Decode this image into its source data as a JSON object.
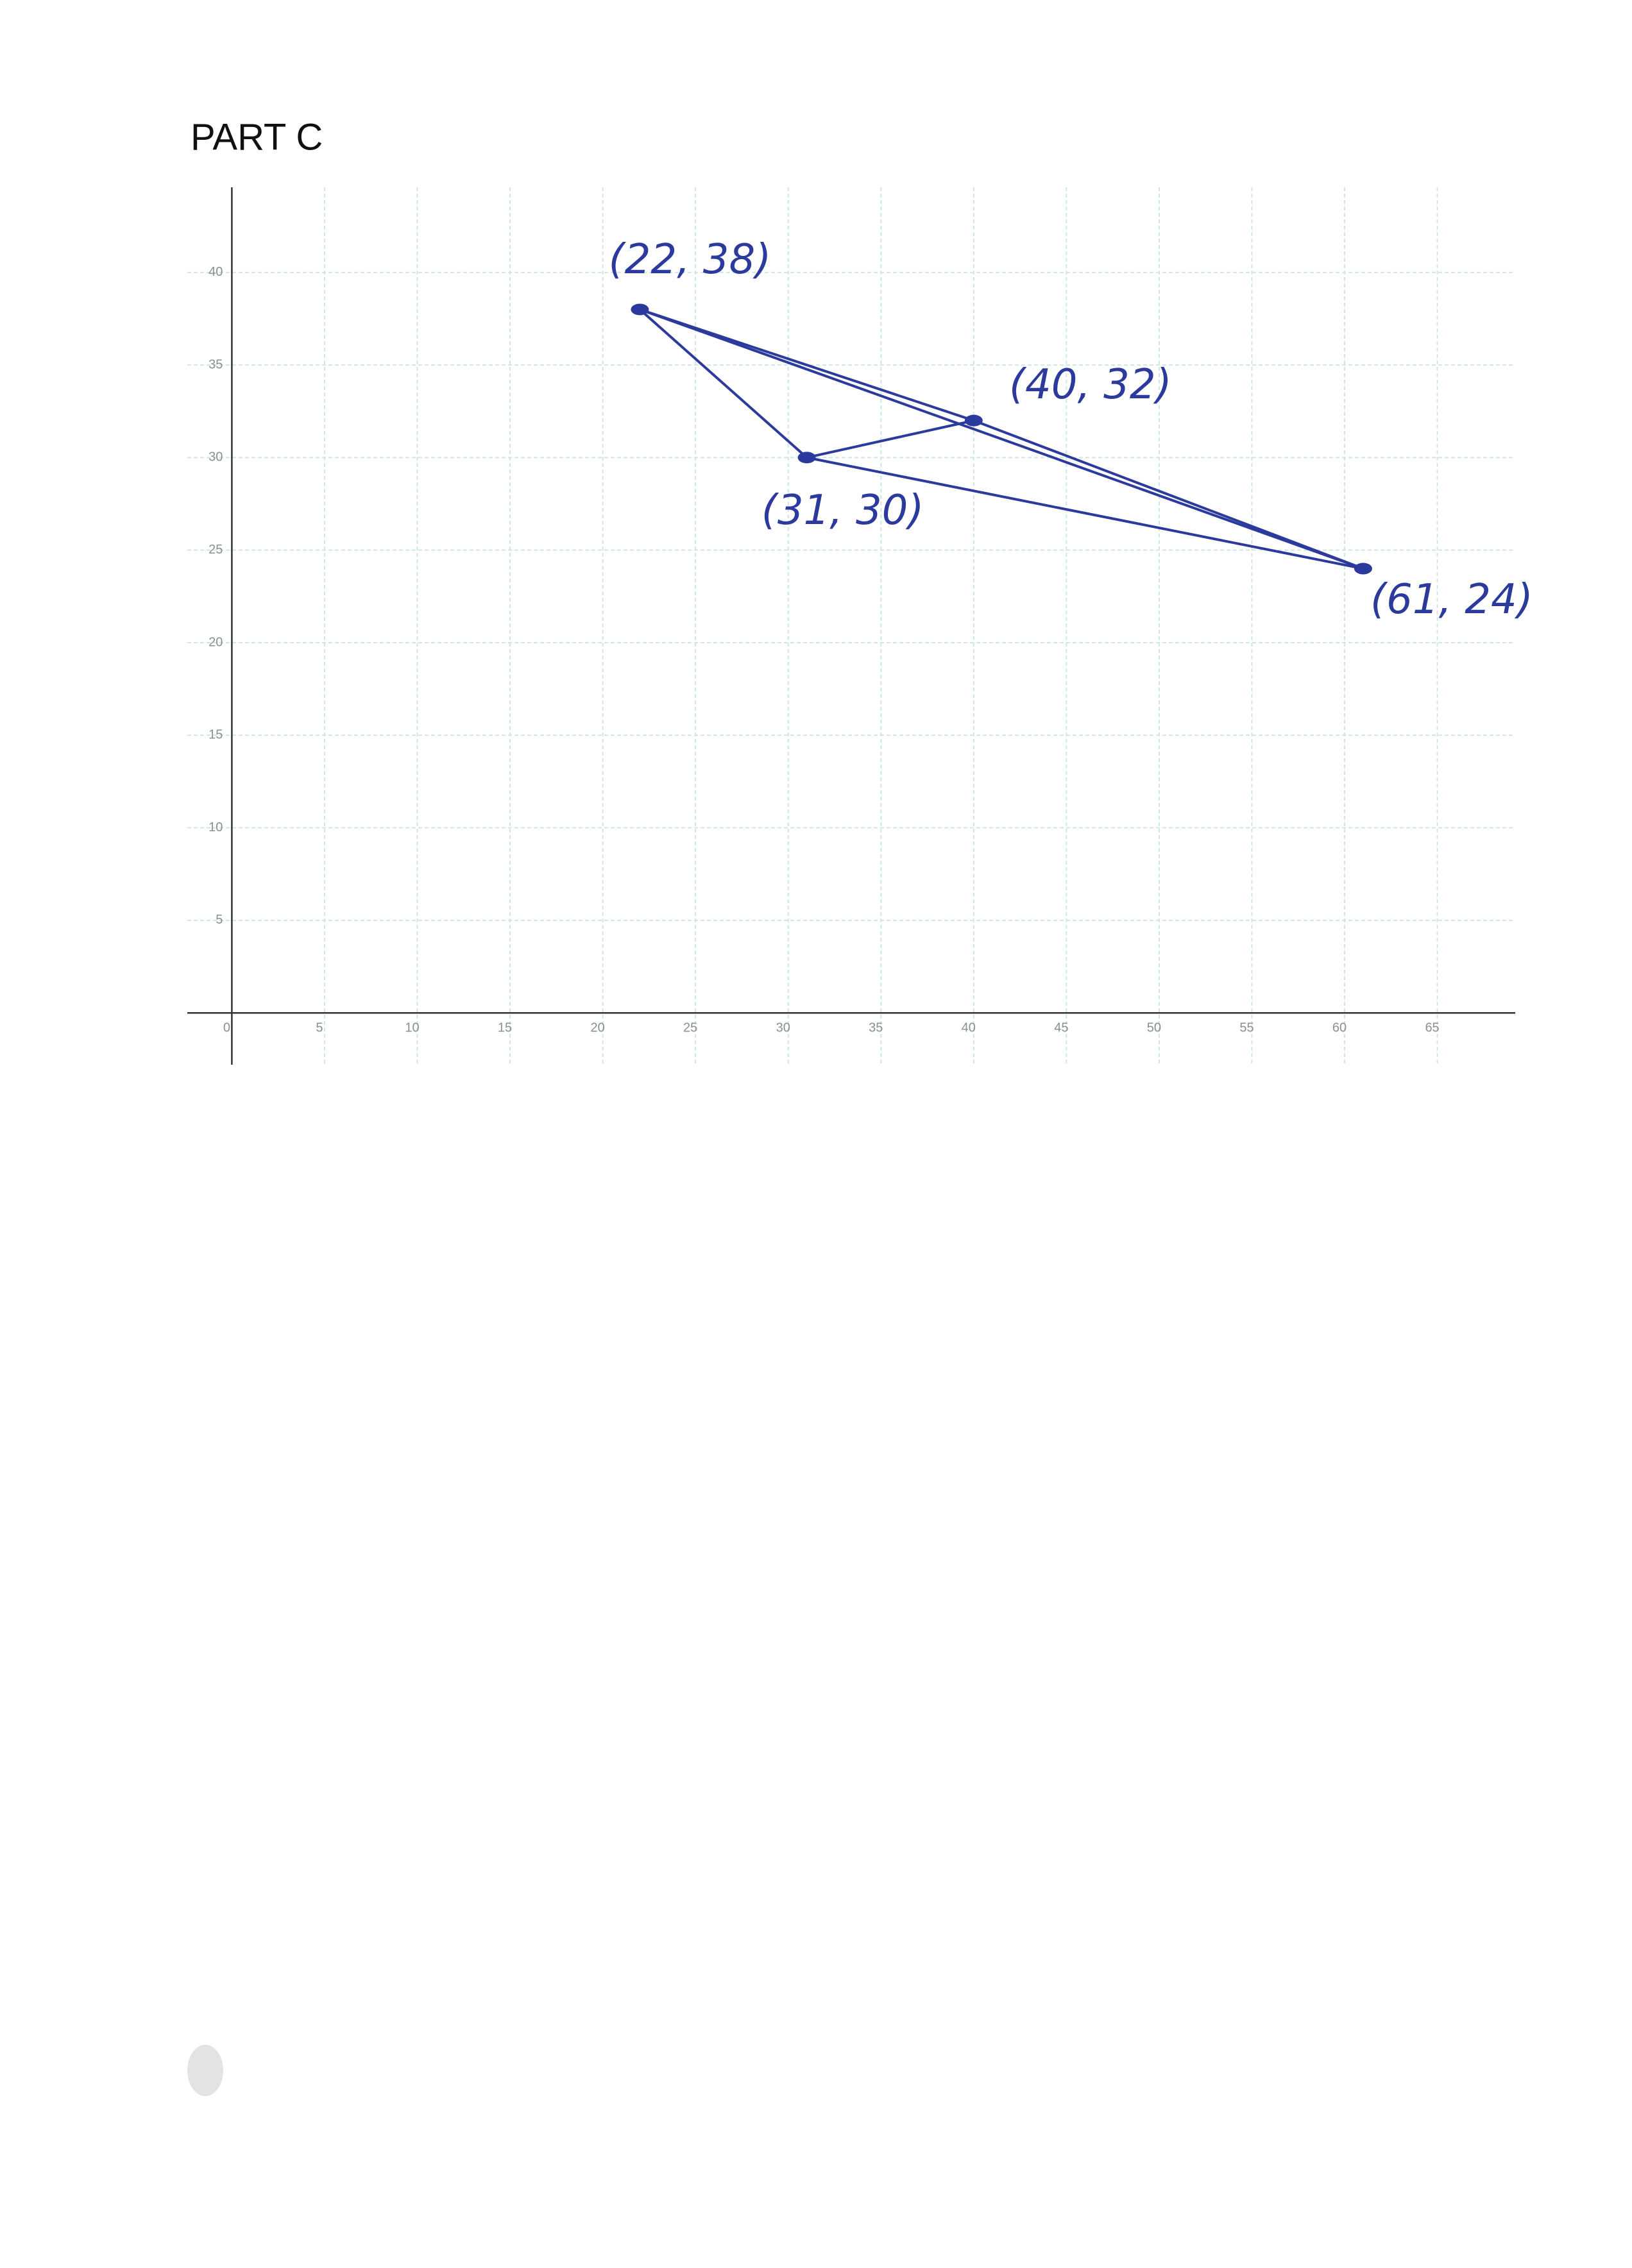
{
  "chart_data": {
    "type": "scatter",
    "title": "PART C",
    "x": [
      22,
      31,
      40,
      61
    ],
    "series": [
      {
        "values": [
          38,
          30,
          32,
          24
        ],
        "color": "#2b3a9c"
      }
    ],
    "point_labels": [
      "(22, 38)",
      "(31, 30)",
      "(40, 32)",
      "(61, 24)"
    ],
    "xlim": [
      -2.4,
      69.2
    ],
    "ylim": [
      -2.8,
      44.6
    ],
    "xticks": [
      0,
      5,
      10,
      15,
      20,
      25,
      30,
      35,
      40,
      45,
      50,
      55,
      60,
      65
    ],
    "yticks": [
      5,
      10,
      15,
      20,
      25,
      30,
      35,
      40
    ],
    "grid": true
  }
}
